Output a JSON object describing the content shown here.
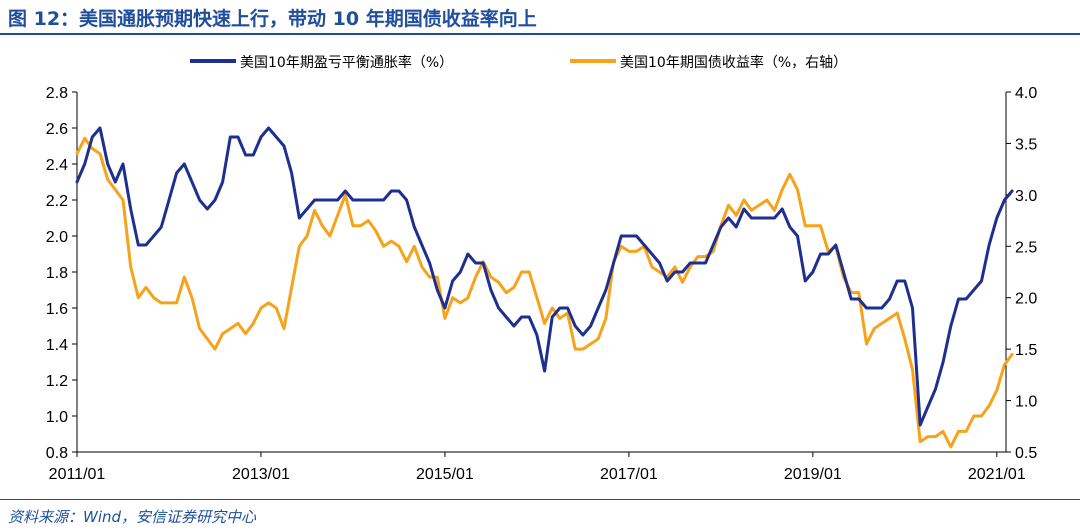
{
  "title": "图 12：美国通胀预期快速上行，带动 10 年期国债收益率向上",
  "source": "资料来源：Wind，安信证券研究中心",
  "colors": {
    "title": "#1f4e9c",
    "series1": "#1f2f8f",
    "series2": "#f7a21b"
  },
  "chart_data": {
    "type": "line",
    "x_ticks": [
      "2011/01",
      "2013/01",
      "2015/01",
      "2017/01",
      "2019/01",
      "2021/01"
    ],
    "y_left": {
      "range": [
        0.8,
        2.8
      ],
      "ticks": [
        "2.8",
        "2.6",
        "2.4",
        "2.2",
        "2.0",
        "1.8",
        "1.6",
        "1.4",
        "1.2",
        "1.0",
        "0.8"
      ]
    },
    "y_right": {
      "range": [
        0.5,
        4.0
      ],
      "ticks": [
        "4.0",
        "3.5",
        "3.0",
        "2.5",
        "2.0",
        "1.5",
        "1.0",
        "0.5"
      ]
    },
    "grid": false,
    "legend_position": "top",
    "series": [
      {
        "name": "美国10年期盈亏平衡通胀率（%）",
        "axis": "left",
        "points": [
          [
            "2011/01",
            2.3
          ],
          [
            "2011/02",
            2.4
          ],
          [
            "2011/03",
            2.55
          ],
          [
            "2011/04",
            2.6
          ],
          [
            "2011/05",
            2.4
          ],
          [
            "2011/06",
            2.3
          ],
          [
            "2011/07",
            2.4
          ],
          [
            "2011/08",
            2.15
          ],
          [
            "2011/09",
            1.95
          ],
          [
            "2011/10",
            1.95
          ],
          [
            "2011/11",
            2.0
          ],
          [
            "2011/12",
            2.05
          ],
          [
            "2012/01",
            2.2
          ],
          [
            "2012/02",
            2.35
          ],
          [
            "2012/03",
            2.4
          ],
          [
            "2012/04",
            2.3
          ],
          [
            "2012/05",
            2.2
          ],
          [
            "2012/06",
            2.15
          ],
          [
            "2012/07",
            2.2
          ],
          [
            "2012/08",
            2.3
          ],
          [
            "2012/09",
            2.55
          ],
          [
            "2012/10",
            2.55
          ],
          [
            "2012/11",
            2.45
          ],
          [
            "2012/12",
            2.45
          ],
          [
            "2013/01",
            2.55
          ],
          [
            "2013/02",
            2.6
          ],
          [
            "2013/03",
            2.55
          ],
          [
            "2013/04",
            2.5
          ],
          [
            "2013/05",
            2.35
          ],
          [
            "2013/06",
            2.1
          ],
          [
            "2013/07",
            2.15
          ],
          [
            "2013/08",
            2.2
          ],
          [
            "2013/09",
            2.2
          ],
          [
            "2013/10",
            2.2
          ],
          [
            "2013/11",
            2.2
          ],
          [
            "2013/12",
            2.25
          ],
          [
            "2014/01",
            2.2
          ],
          [
            "2014/02",
            2.2
          ],
          [
            "2014/03",
            2.2
          ],
          [
            "2014/04",
            2.2
          ],
          [
            "2014/05",
            2.2
          ],
          [
            "2014/06",
            2.25
          ],
          [
            "2014/07",
            2.25
          ],
          [
            "2014/08",
            2.2
          ],
          [
            "2014/09",
            2.05
          ],
          [
            "2014/10",
            1.95
          ],
          [
            "2014/11",
            1.85
          ],
          [
            "2014/12",
            1.7
          ],
          [
            "2015/01",
            1.6
          ],
          [
            "2015/02",
            1.75
          ],
          [
            "2015/03",
            1.8
          ],
          [
            "2015/04",
            1.9
          ],
          [
            "2015/05",
            1.85
          ],
          [
            "2015/06",
            1.85
          ],
          [
            "2015/07",
            1.7
          ],
          [
            "2015/08",
            1.6
          ],
          [
            "2015/09",
            1.55
          ],
          [
            "2015/10",
            1.5
          ],
          [
            "2015/11",
            1.55
          ],
          [
            "2015/12",
            1.55
          ],
          [
            "2016/01",
            1.45
          ],
          [
            "2016/02",
            1.25
          ],
          [
            "2016/03",
            1.55
          ],
          [
            "2016/04",
            1.6
          ],
          [
            "2016/05",
            1.6
          ],
          [
            "2016/06",
            1.5
          ],
          [
            "2016/07",
            1.45
          ],
          [
            "2016/08",
            1.5
          ],
          [
            "2016/09",
            1.6
          ],
          [
            "2016/10",
            1.7
          ],
          [
            "2016/11",
            1.85
          ],
          [
            "2016/12",
            2.0
          ],
          [
            "2017/01",
            2.0
          ],
          [
            "2017/02",
            2.0
          ],
          [
            "2017/03",
            1.95
          ],
          [
            "2017/04",
            1.9
          ],
          [
            "2017/05",
            1.85
          ],
          [
            "2017/06",
            1.75
          ],
          [
            "2017/07",
            1.8
          ],
          [
            "2017/08",
            1.8
          ],
          [
            "2017/09",
            1.85
          ],
          [
            "2017/10",
            1.85
          ],
          [
            "2017/11",
            1.85
          ],
          [
            "2017/12",
            1.95
          ],
          [
            "2018/01",
            2.05
          ],
          [
            "2018/02",
            2.1
          ],
          [
            "2018/03",
            2.05
          ],
          [
            "2018/04",
            2.15
          ],
          [
            "2018/05",
            2.1
          ],
          [
            "2018/06",
            2.1
          ],
          [
            "2018/07",
            2.1
          ],
          [
            "2018/08",
            2.1
          ],
          [
            "2018/09",
            2.15
          ],
          [
            "2018/10",
            2.05
          ],
          [
            "2018/11",
            2.0
          ],
          [
            "2018/12",
            1.75
          ],
          [
            "2019/01",
            1.8
          ],
          [
            "2019/02",
            1.9
          ],
          [
            "2019/03",
            1.9
          ],
          [
            "2019/04",
            1.95
          ],
          [
            "2019/05",
            1.8
          ],
          [
            "2019/06",
            1.65
          ],
          [
            "2019/07",
            1.65
          ],
          [
            "2019/08",
            1.6
          ],
          [
            "2019/09",
            1.6
          ],
          [
            "2019/10",
            1.6
          ],
          [
            "2019/11",
            1.65
          ],
          [
            "2019/12",
            1.75
          ],
          [
            "2020/01",
            1.75
          ],
          [
            "2020/02",
            1.6
          ],
          [
            "2020/03",
            0.95
          ],
          [
            "2020/04",
            1.05
          ],
          [
            "2020/05",
            1.15
          ],
          [
            "2020/06",
            1.3
          ],
          [
            "2020/07",
            1.5
          ],
          [
            "2020/08",
            1.65
          ],
          [
            "2020/09",
            1.65
          ],
          [
            "2020/10",
            1.7
          ],
          [
            "2020/11",
            1.75
          ],
          [
            "2020/12",
            1.95
          ],
          [
            "2021/01",
            2.1
          ],
          [
            "2021/02",
            2.2
          ],
          [
            "2021/03",
            2.25
          ]
        ]
      },
      {
        "name": "美国10年期国债收益率（%，右轴）",
        "axis": "right",
        "points": [
          [
            "2011/01",
            3.4
          ],
          [
            "2011/02",
            3.55
          ],
          [
            "2011/03",
            3.45
          ],
          [
            "2011/04",
            3.4
          ],
          [
            "2011/05",
            3.15
          ],
          [
            "2011/06",
            3.05
          ],
          [
            "2011/07",
            2.95
          ],
          [
            "2011/08",
            2.3
          ],
          [
            "2011/09",
            2.0
          ],
          [
            "2011/10",
            2.1
          ],
          [
            "2011/11",
            2.0
          ],
          [
            "2011/12",
            1.95
          ],
          [
            "2012/01",
            1.95
          ],
          [
            "2012/02",
            1.95
          ],
          [
            "2012/03",
            2.2
          ],
          [
            "2012/04",
            2.0
          ],
          [
            "2012/05",
            1.7
          ],
          [
            "2012/06",
            1.6
          ],
          [
            "2012/07",
            1.5
          ],
          [
            "2012/08",
            1.65
          ],
          [
            "2012/09",
            1.7
          ],
          [
            "2012/10",
            1.75
          ],
          [
            "2012/11",
            1.65
          ],
          [
            "2012/12",
            1.75
          ],
          [
            "2013/01",
            1.9
          ],
          [
            "2013/02",
            1.95
          ],
          [
            "2013/03",
            1.9
          ],
          [
            "2013/04",
            1.7
          ],
          [
            "2013/05",
            2.1
          ],
          [
            "2013/06",
            2.5
          ],
          [
            "2013/07",
            2.6
          ],
          [
            "2013/08",
            2.85
          ],
          [
            "2013/09",
            2.7
          ],
          [
            "2013/10",
            2.6
          ],
          [
            "2013/11",
            2.8
          ],
          [
            "2013/12",
            3.0
          ],
          [
            "2014/01",
            2.7
          ],
          [
            "2014/02",
            2.7
          ],
          [
            "2014/03",
            2.75
          ],
          [
            "2014/04",
            2.65
          ],
          [
            "2014/05",
            2.5
          ],
          [
            "2014/06",
            2.55
          ],
          [
            "2014/07",
            2.5
          ],
          [
            "2014/08",
            2.35
          ],
          [
            "2014/09",
            2.5
          ],
          [
            "2014/10",
            2.3
          ],
          [
            "2014/11",
            2.2
          ],
          [
            "2014/12",
            2.2
          ],
          [
            "2015/01",
            1.8
          ],
          [
            "2015/02",
            2.0
          ],
          [
            "2015/03",
            1.95
          ],
          [
            "2015/04",
            2.0
          ],
          [
            "2015/05",
            2.2
          ],
          [
            "2015/06",
            2.35
          ],
          [
            "2015/07",
            2.2
          ],
          [
            "2015/08",
            2.15
          ],
          [
            "2015/09",
            2.05
          ],
          [
            "2015/10",
            2.1
          ],
          [
            "2015/11",
            2.25
          ],
          [
            "2015/12",
            2.25
          ],
          [
            "2016/01",
            2.0
          ],
          [
            "2016/02",
            1.75
          ],
          [
            "2016/03",
            1.9
          ],
          [
            "2016/04",
            1.8
          ],
          [
            "2016/05",
            1.85
          ],
          [
            "2016/06",
            1.5
          ],
          [
            "2016/07",
            1.5
          ],
          [
            "2016/08",
            1.55
          ],
          [
            "2016/09",
            1.6
          ],
          [
            "2016/10",
            1.8
          ],
          [
            "2016/11",
            2.35
          ],
          [
            "2016/12",
            2.5
          ],
          [
            "2017/01",
            2.45
          ],
          [
            "2017/02",
            2.45
          ],
          [
            "2017/03",
            2.5
          ],
          [
            "2017/04",
            2.3
          ],
          [
            "2017/05",
            2.25
          ],
          [
            "2017/06",
            2.2
          ],
          [
            "2017/07",
            2.3
          ],
          [
            "2017/08",
            2.15
          ],
          [
            "2017/09",
            2.3
          ],
          [
            "2017/10",
            2.4
          ],
          [
            "2017/11",
            2.4
          ],
          [
            "2017/12",
            2.45
          ],
          [
            "2018/01",
            2.7
          ],
          [
            "2018/02",
            2.9
          ],
          [
            "2018/03",
            2.8
          ],
          [
            "2018/04",
            2.95
          ],
          [
            "2018/05",
            2.85
          ],
          [
            "2018/06",
            2.9
          ],
          [
            "2018/07",
            2.95
          ],
          [
            "2018/08",
            2.85
          ],
          [
            "2018/09",
            3.05
          ],
          [
            "2018/10",
            3.2
          ],
          [
            "2018/11",
            3.05
          ],
          [
            "2018/12",
            2.7
          ],
          [
            "2019/01",
            2.7
          ],
          [
            "2019/02",
            2.7
          ],
          [
            "2019/03",
            2.45
          ],
          [
            "2019/04",
            2.5
          ],
          [
            "2019/05",
            2.2
          ],
          [
            "2019/06",
            2.05
          ],
          [
            "2019/07",
            2.05
          ],
          [
            "2019/08",
            1.55
          ],
          [
            "2019/09",
            1.7
          ],
          [
            "2019/10",
            1.75
          ],
          [
            "2019/11",
            1.8
          ],
          [
            "2019/12",
            1.85
          ],
          [
            "2020/01",
            1.6
          ],
          [
            "2020/02",
            1.3
          ],
          [
            "2020/03",
            0.6
          ],
          [
            "2020/04",
            0.65
          ],
          [
            "2020/05",
            0.65
          ],
          [
            "2020/06",
            0.7
          ],
          [
            "2020/07",
            0.55
          ],
          [
            "2020/08",
            0.7
          ],
          [
            "2020/09",
            0.7
          ],
          [
            "2020/10",
            0.85
          ],
          [
            "2020/11",
            0.85
          ],
          [
            "2020/12",
            0.95
          ],
          [
            "2021/01",
            1.1
          ],
          [
            "2021/02",
            1.35
          ],
          [
            "2021/03",
            1.45
          ]
        ]
      }
    ]
  }
}
